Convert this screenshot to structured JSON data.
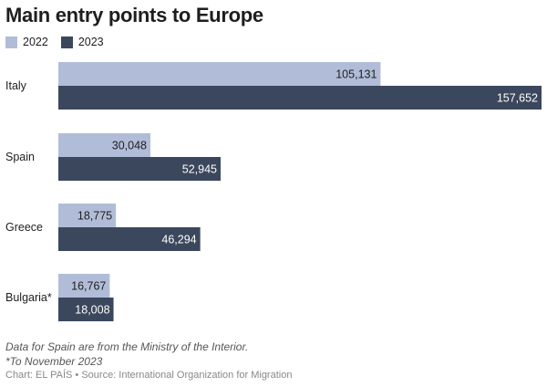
{
  "title": "Main entry points to Europe",
  "legend": [
    {
      "label": "2022",
      "color": "#b1bdd8"
    },
    {
      "label": "2023",
      "color": "#3b475c"
    }
  ],
  "chart_data": {
    "type": "bar",
    "orientation": "horizontal",
    "title": "Main entry points to Europe",
    "categories": [
      "Italy",
      "Spain",
      "Greece",
      "Bulgaria*"
    ],
    "series": [
      {
        "name": "2022",
        "values": [
          105131,
          30048,
          18775,
          16767
        ],
        "labels": [
          "105,131",
          "30,048",
          "18,775",
          "16,767"
        ],
        "color": "#b1bdd8"
      },
      {
        "name": "2023",
        "values": [
          157652,
          52945,
          46294,
          18008
        ],
        "labels": [
          "157,652",
          "52,945",
          "46,294",
          "18,008"
        ],
        "color": "#3b475c"
      }
    ],
    "xlim": [
      0,
      157652
    ],
    "grid": false,
    "legend_position": "top-left"
  },
  "notes": [
    "Data for Spain are from the Ministry of the Interior.",
    "*To November 2023"
  ],
  "credit": "Chart: EL PAÍS • Source: International Organization for Migration"
}
